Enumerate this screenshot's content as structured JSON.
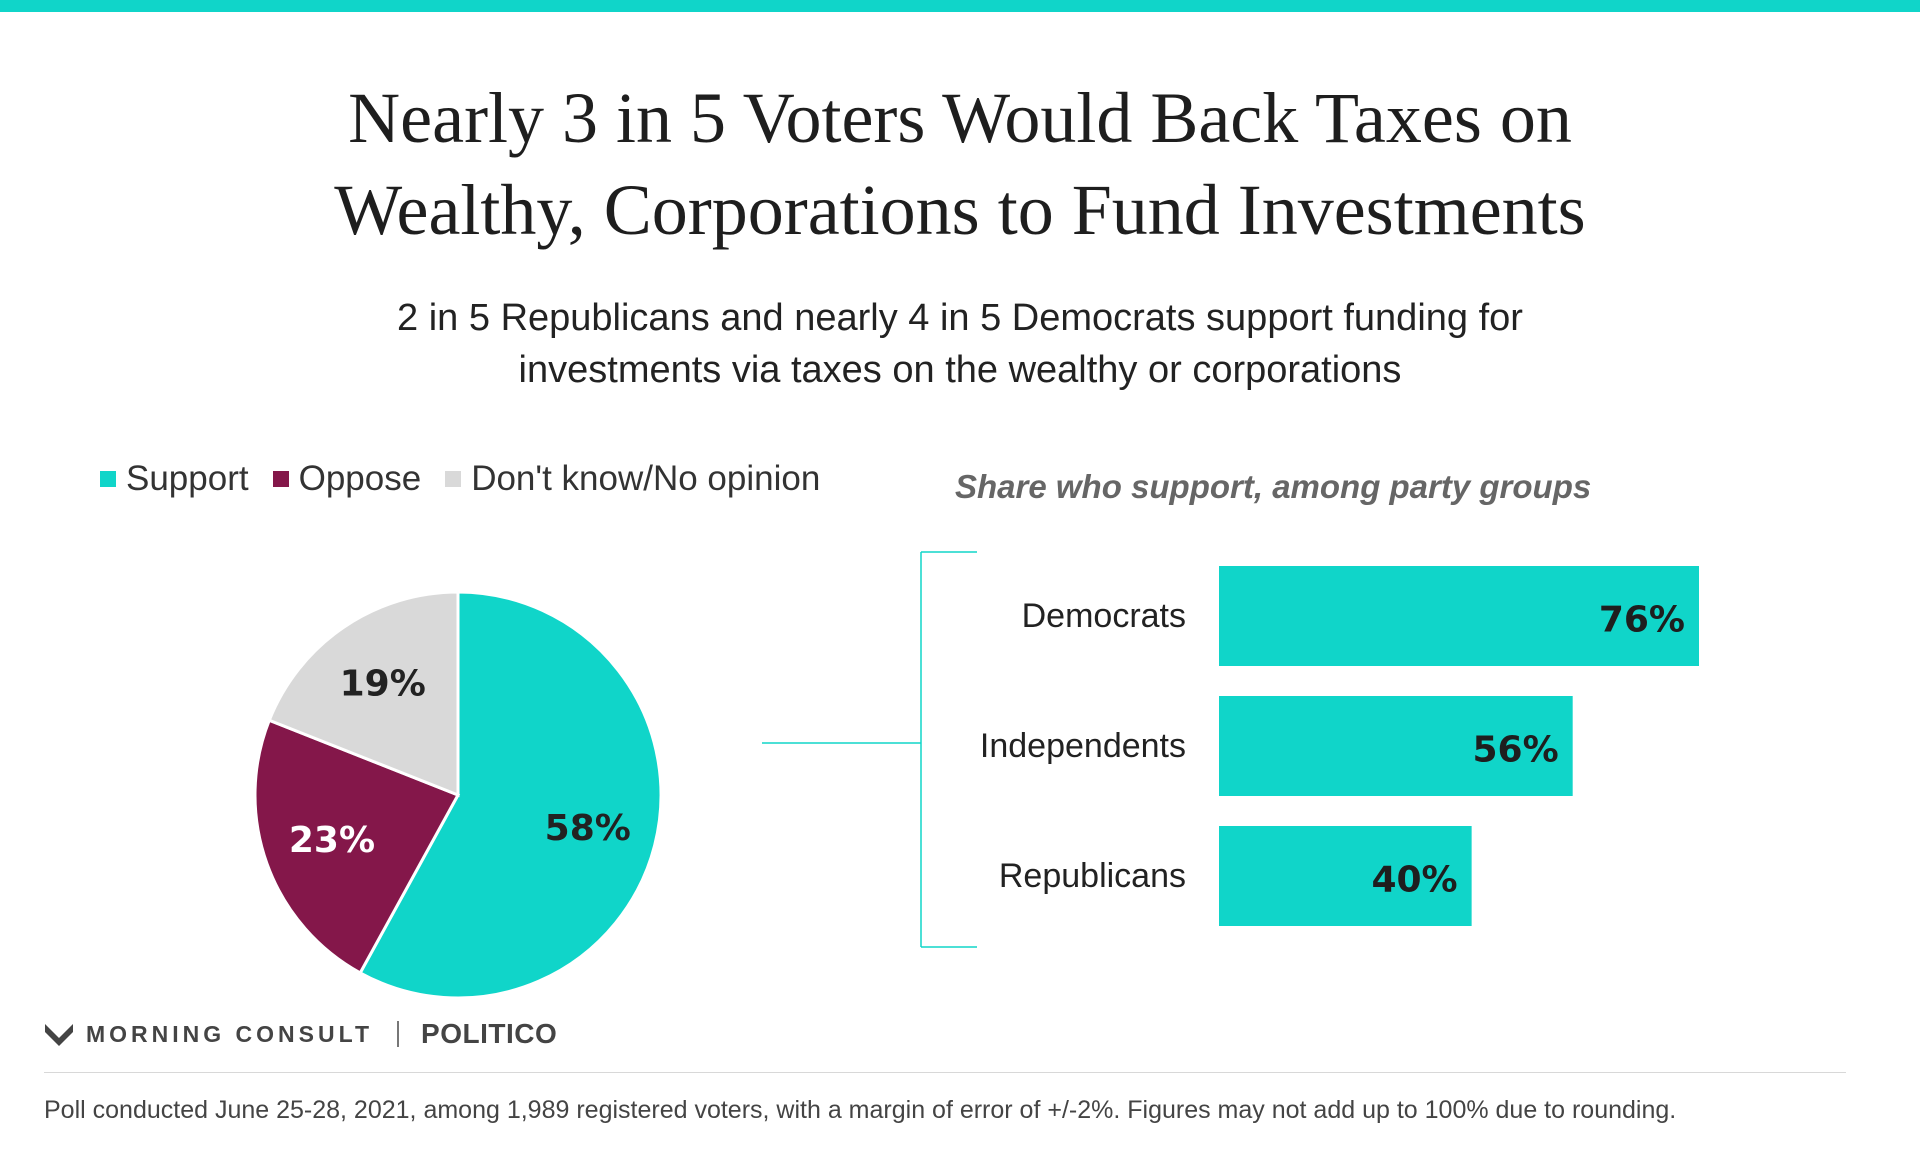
{
  "header": {
    "title_lines": [
      "Nearly 3 in 5 Voters Would Back Taxes on",
      "Wealthy, Corporations to Fund Investments"
    ],
    "subtitle_lines": [
      "2 in 5 Republicans and nearly 4 in 5 Democrats support funding for",
      "investments via taxes on the wealthy or corporations"
    ]
  },
  "chart_data": [
    {
      "type": "pie",
      "categories": [
        "Support",
        "Oppose",
        "Don't know/No opinion"
      ],
      "values": [
        58,
        23,
        19
      ],
      "data_labels": [
        "58%",
        "23%",
        "19%"
      ],
      "colors": [
        "#10d5c9",
        "#84174a",
        "#d9d9d9"
      ],
      "label_colors": [
        "#222222",
        "#ffffff",
        "#222222"
      ],
      "legend": "top-left"
    },
    {
      "type": "bar",
      "orientation": "horizontal",
      "title": "Share who support, among party groups",
      "categories": [
        "Democrats",
        "Independents",
        "Republicans"
      ],
      "values": [
        76,
        56,
        40
      ],
      "data_labels": [
        "76%",
        "56%",
        "40%"
      ],
      "color": "#10d5c9",
      "xlim": [
        0,
        100
      ]
    }
  ],
  "footer": {
    "brand": "MORNING CONSULT",
    "partner": "POLITICO",
    "note": "Poll conducted June 25-28, 2021, among 1,989 registered voters, with a margin of error of +/-2%. Figures may not add up to 100% due to rounding."
  }
}
